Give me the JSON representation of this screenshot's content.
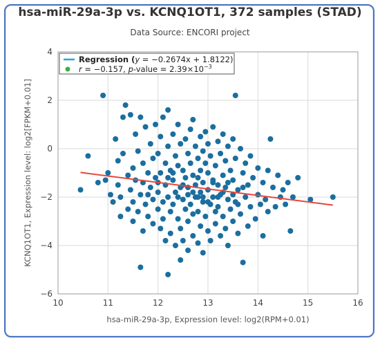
{
  "chart_data": {
    "type": "scatter",
    "title": "hsa-miR-29a-3p vs. KCNQ1OT1, 372 samples (STAD)",
    "subtitle": "Data Source: ENCORI project",
    "xlabel": "hsa-miR-29a-3p, Expression level: log2(RPM+0.01)",
    "ylabel": "KCNQ1OT1, Expression level: log2[FPKM+0.01]",
    "xlim": [
      10,
      16
    ],
    "ylim": [
      -6,
      4
    ],
    "xticks": [
      "10",
      "11",
      "12",
      "13",
      "14",
      "15",
      "16"
    ],
    "yticks": [
      "4",
      "2",
      "0",
      "−2",
      "−4",
      "−6"
    ],
    "grid": true,
    "legend_position": "top-left",
    "legend": {
      "regression_prefix": "Regression (",
      "regression_y": "y",
      "regression_eq": " = −0.2674x + 1.8122)",
      "r_label": "r",
      "r_value": " = −0.157, ",
      "p_label": "p",
      "p_value": "-value = 2.39×10",
      "p_exp": "−3"
    },
    "regression": {
      "slope": -0.2674,
      "intercept": 1.8122,
      "x_range": [
        10.45,
        15.5
      ]
    },
    "colors": {
      "points": "#1b6e9e",
      "regression_line": "#e8453c",
      "legend_line": "#29a3d6",
      "legend_dot": "#3cb043",
      "grid": "#d9d9d9"
    },
    "points": [
      [
        10.45,
        -1.7
      ],
      [
        10.6,
        -0.3
      ],
      [
        10.8,
        -1.4
      ],
      [
        10.9,
        2.2
      ],
      [
        10.95,
        -1.3
      ],
      [
        11.0,
        -1.0
      ],
      [
        11.05,
        -1.9
      ],
      [
        11.1,
        -2.2
      ],
      [
        11.15,
        0.4
      ],
      [
        11.2,
        -0.5
      ],
      [
        11.2,
        -1.5
      ],
      [
        11.25,
        -2.0
      ],
      [
        11.25,
        -2.8
      ],
      [
        11.3,
        1.3
      ],
      [
        11.3,
        -0.2
      ],
      [
        11.35,
        1.8
      ],
      [
        11.4,
        -1.1
      ],
      [
        11.4,
        -2.5
      ],
      [
        11.45,
        1.4
      ],
      [
        11.45,
        -1.7
      ],
      [
        11.5,
        -0.8
      ],
      [
        11.5,
        -2.2
      ],
      [
        11.5,
        -3.0
      ],
      [
        11.55,
        0.6
      ],
      [
        11.55,
        -1.3
      ],
      [
        11.6,
        -0.1
      ],
      [
        11.6,
        -2.6
      ],
      [
        11.65,
        1.3
      ],
      [
        11.65,
        -1.9
      ],
      [
        11.65,
        -4.9
      ],
      [
        11.7,
        -0.6
      ],
      [
        11.7,
        -1.4
      ],
      [
        11.7,
        -3.4
      ],
      [
        11.75,
        0.9
      ],
      [
        11.75,
        -2.3
      ],
      [
        11.8,
        -1.0
      ],
      [
        11.8,
        -2.8
      ],
      [
        11.85,
        0.2
      ],
      [
        11.85,
        -1.6
      ],
      [
        11.9,
        -0.4
      ],
      [
        11.9,
        -2.1
      ],
      [
        11.9,
        -3.1
      ],
      [
        11.95,
        1.0
      ],
      [
        11.95,
        -1.2
      ],
      [
        12.0,
        -0.2
      ],
      [
        12.0,
        -1.8
      ],
      [
        12.0,
        -2.5
      ],
      [
        12.05,
        0.5
      ],
      [
        12.05,
        -1.0
      ],
      [
        12.05,
        -3.3
      ],
      [
        12.1,
        1.3
      ],
      [
        12.1,
        -2.2
      ],
      [
        12.1,
        -2.9
      ],
      [
        12.15,
        -0.6
      ],
      [
        12.15,
        -1.5
      ],
      [
        12.15,
        -3.8
      ],
      [
        12.2,
        1.6
      ],
      [
        12.2,
        0.1
      ],
      [
        12.2,
        -2.0
      ],
      [
        12.2,
        -5.2
      ],
      [
        12.25,
        -0.9
      ],
      [
        12.25,
        -2.6
      ],
      [
        12.25,
        -3.5
      ],
      [
        12.3,
        0.6
      ],
      [
        12.3,
        -1.3
      ],
      [
        12.3,
        -2.3
      ],
      [
        12.35,
        -0.3
      ],
      [
        12.35,
        -1.8
      ],
      [
        12.35,
        -4.0
      ],
      [
        12.4,
        1.0
      ],
      [
        12.4,
        -0.7
      ],
      [
        12.4,
        -2.9
      ],
      [
        12.45,
        0.2
      ],
      [
        12.45,
        -1.6
      ],
      [
        12.45,
        -3.3
      ],
      [
        12.45,
        -4.6
      ],
      [
        12.5,
        -0.9
      ],
      [
        12.5,
        -2.1
      ],
      [
        12.5,
        -3.8
      ],
      [
        12.55,
        0.4
      ],
      [
        12.55,
        -1.2
      ],
      [
        12.55,
        -2.5
      ],
      [
        12.6,
        -0.2
      ],
      [
        12.6,
        -1.9
      ],
      [
        12.6,
        -3.0
      ],
      [
        12.6,
        -4.2
      ],
      [
        12.65,
        0.8
      ],
      [
        12.65,
        -0.6
      ],
      [
        12.65,
        -2.3
      ],
      [
        12.7,
        1.2
      ],
      [
        12.7,
        -1.1
      ],
      [
        12.7,
        -2.7
      ],
      [
        12.7,
        -3.6
      ],
      [
        12.75,
        0.1
      ],
      [
        12.75,
        -1.5
      ],
      [
        12.75,
        -2.0
      ],
      [
        12.8,
        -0.4
      ],
      [
        12.8,
        -1.2
      ],
      [
        12.8,
        -2.6
      ],
      [
        12.8,
        -3.9
      ],
      [
        12.85,
        0.5
      ],
      [
        12.85,
        -0.9
      ],
      [
        12.85,
        -1.8
      ],
      [
        12.85,
        -3.2
      ],
      [
        12.9,
        -0.1
      ],
      [
        12.9,
        -1.4
      ],
      [
        12.9,
        -2.2
      ],
      [
        12.9,
        -4.3
      ],
      [
        12.95,
        0.7
      ],
      [
        12.95,
        -0.6
      ],
      [
        12.95,
        -2.8
      ],
      [
        13.0,
        0.2
      ],
      [
        13.0,
        -1.0
      ],
      [
        13.0,
        -1.7
      ],
      [
        13.0,
        -3.4
      ],
      [
        13.05,
        -0.3
      ],
      [
        13.05,
        -2.3
      ],
      [
        13.05,
        -3.8
      ],
      [
        13.1,
        0.9
      ],
      [
        13.1,
        -1.3
      ],
      [
        13.1,
        -2.0
      ],
      [
        13.15,
        -0.7
      ],
      [
        13.15,
        -2.6
      ],
      [
        13.15,
        -3.1
      ],
      [
        13.2,
        0.3
      ],
      [
        13.2,
        -1.5
      ],
      [
        13.2,
        -2.4
      ],
      [
        13.25,
        -0.2
      ],
      [
        13.25,
        -1.9
      ],
      [
        13.25,
        -3.6
      ],
      [
        13.3,
        0.6
      ],
      [
        13.3,
        -1.1
      ],
      [
        13.3,
        -2.8
      ],
      [
        13.35,
        -0.5
      ],
      [
        13.35,
        -1.6
      ],
      [
        13.35,
        -3.3
      ],
      [
        13.4,
        0.1
      ],
      [
        13.4,
        -2.1
      ],
      [
        13.4,
        -4.0
      ],
      [
        13.45,
        -0.9
      ],
      [
        13.45,
        -2.5
      ],
      [
        13.5,
        0.4
      ],
      [
        13.5,
        -1.3
      ],
      [
        13.5,
        -3.0
      ],
      [
        13.55,
        2.2
      ],
      [
        13.55,
        -0.4
      ],
      [
        13.55,
        -2.2
      ],
      [
        13.6,
        -1.7
      ],
      [
        13.6,
        -3.5
      ],
      [
        13.65,
        0.0
      ],
      [
        13.65,
        -2.7
      ],
      [
        13.7,
        -1.0
      ],
      [
        13.7,
        -4.7
      ],
      [
        13.75,
        -0.6
      ],
      [
        13.75,
        -2.0
      ],
      [
        13.8,
        -1.5
      ],
      [
        13.8,
        -3.2
      ],
      [
        13.85,
        -0.3
      ],
      [
        13.85,
        -2.4
      ],
      [
        13.9,
        -1.2
      ],
      [
        13.95,
        -2.9
      ],
      [
        14.0,
        -0.8
      ],
      [
        14.0,
        -1.9
      ],
      [
        14.05,
        -2.3
      ],
      [
        14.1,
        -1.4
      ],
      [
        14.1,
        -3.6
      ],
      [
        14.15,
        -2.1
      ],
      [
        14.2,
        -0.9
      ],
      [
        14.2,
        -2.6
      ],
      [
        14.25,
        0.4
      ],
      [
        14.3,
        -1.6
      ],
      [
        14.35,
        -2.4
      ],
      [
        14.4,
        -1.1
      ],
      [
        14.45,
        -2.0
      ],
      [
        14.5,
        -1.7
      ],
      [
        14.55,
        -2.3
      ],
      [
        14.6,
        -1.4
      ],
      [
        14.65,
        -3.4
      ],
      [
        14.7,
        -2.0
      ],
      [
        14.8,
        -1.2
      ],
      [
        15.05,
        -2.1
      ],
      [
        15.5,
        -2.0
      ],
      [
        12.3,
        -1.0
      ],
      [
        12.5,
        -1.5
      ],
      [
        12.7,
        -1.8
      ],
      [
        12.9,
        -2.0
      ],
      [
        13.1,
        -1.4
      ],
      [
        13.3,
        -1.8
      ],
      [
        13.5,
        -1.9
      ],
      [
        13.7,
        -1.6
      ],
      [
        12.4,
        -2.0
      ],
      [
        12.6,
        -1.6
      ],
      [
        12.8,
        -2.0
      ],
      [
        13.0,
        -2.2
      ],
      [
        13.2,
        -2.0
      ],
      [
        13.4,
        -1.4
      ],
      [
        13.6,
        -2.3
      ],
      [
        12.2,
        -1.2
      ],
      [
        12.0,
        -1.4
      ],
      [
        11.8,
        -1.9
      ]
    ]
  }
}
